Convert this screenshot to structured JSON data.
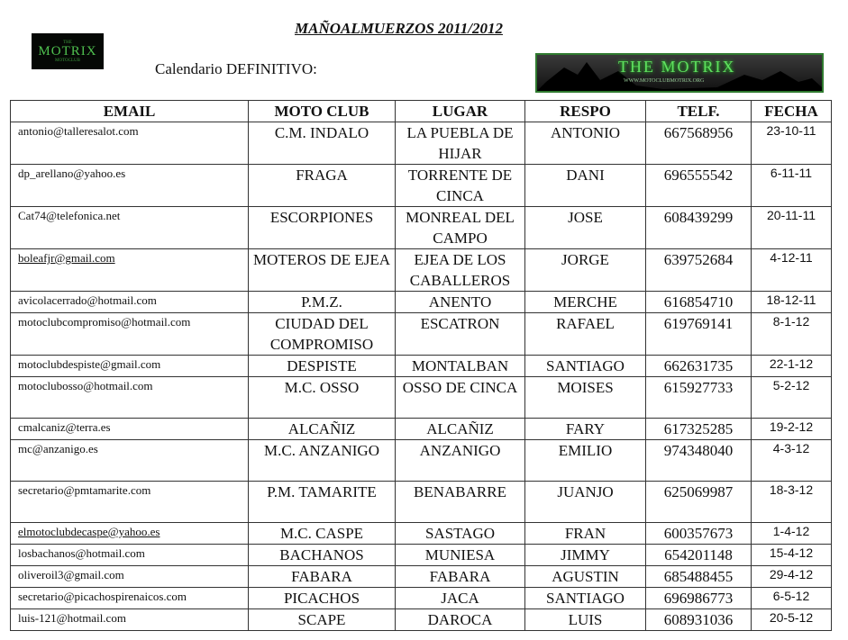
{
  "title": "MAÑOALMUERZOS 2011/2012",
  "subtitle": "Calendario DEFINITIVO:",
  "logo_left": {
    "top": "THE",
    "main": "MOTRIX",
    "bottom": "MOTOCLUB"
  },
  "logo_right": {
    "main": "THE MOTRIX",
    "url": "WWW.MOTOCLUBMOTRIX.ORG"
  },
  "headers": [
    "EMAIL",
    "MOTO CLUB",
    "LUGAR",
    "RESPO",
    "TELF.",
    "FECHA"
  ],
  "rows": [
    {
      "email": "antonio@talleresalot.com",
      "club": "C.M. INDALO",
      "lugar": "LA PUEBLA DE HIJAR",
      "respo": "ANTONIO",
      "telf": "667568956",
      "fecha": "23-10-11"
    },
    {
      "email": "dp_arellano@yahoo.es",
      "club": "FRAGA",
      "lugar": "TORRENTE DE CINCA",
      "respo": "DANI",
      "telf": "696555542",
      "fecha": "6-11-11"
    },
    {
      "email": "Cat74@telefonica.net",
      "club": "ESCORPIONES",
      "lugar": "MONREAL DEL CAMPO",
      "respo": "JOSE",
      "telf": "608439299",
      "fecha": "20-11-11"
    },
    {
      "email": "boleafjr@gmail.com",
      "club": "MOTEROS DE EJEA",
      "lugar": "EJEA DE LOS CABALLEROS",
      "respo": "JORGE",
      "telf": "639752684",
      "fecha": "4-12-11"
    },
    {
      "email": "avicolacerrado@hotmail.com",
      "club": "P.M.Z.",
      "lugar": "ANENTO",
      "respo": "MERCHE",
      "telf": "616854710",
      "fecha": "18-12-11"
    },
    {
      "email": "motoclubcompromiso@hotmail.com",
      "club": "CIUDAD DEL COMPROMISO",
      "lugar": "ESCATRON",
      "respo": "RAFAEL",
      "telf": "619769141",
      "fecha": "8-1-12"
    },
    {
      "email": "motoclubdespiste@gmail.com",
      "club": "DESPISTE",
      "lugar": "MONTALBAN",
      "respo": "SANTIAGO",
      "telf": "662631735",
      "fecha": "22-1-12"
    },
    {
      "email": "motoclubosso@hotmail.com",
      "club": "M.C. OSSO",
      "lugar": "OSSO DE CINCA",
      "respo": "MOISES",
      "telf": "615927733",
      "fecha": "5-2-12"
    },
    {
      "email": "cmalcaniz@terra.es",
      "club": "ALCAÑIZ",
      "lugar": "ALCAÑIZ",
      "respo": "FARY",
      "telf": "617325285",
      "fecha": "19-2-12"
    },
    {
      "email": "mc@anzanigo.es",
      "club": "M.C. ANZANIGO",
      "lugar": "ANZANIGO",
      "respo": "EMILIO",
      "telf": "974348040",
      "fecha": "4-3-12"
    },
    {
      "email": "secretario@pmtamarite.com",
      "club": "P.M. TAMARITE",
      "lugar": "BENABARRE",
      "respo": "JUANJO",
      "telf": "625069987",
      "fecha": "18-3-12"
    },
    {
      "email": "elmotoclubdecaspe@yahoo.es",
      "club": "M.C. CASPE",
      "lugar": "SASTAGO",
      "respo": "FRAN",
      "telf": "600357673",
      "fecha": "1-4-12"
    },
    {
      "email": "losbachanos@hotmail.com",
      "club": "BACHANOS",
      "lugar": "MUNIESA",
      "respo": "JIMMY",
      "telf": "654201148",
      "fecha": "15-4-12"
    },
    {
      "email": "oliveroil3@gmail.com",
      "club": "FABARA",
      "lugar": "FABARA",
      "respo": "AGUSTIN",
      "telf": "685488455",
      "fecha": "29-4-12"
    },
    {
      "email": "secretario@picachospirenaicos.com",
      "club": "PICACHOS",
      "lugar": "JACA",
      "respo": "SANTIAGO",
      "telf": "696986773",
      "fecha": "6-5-12"
    },
    {
      "email": "luis-121@hotmail.com",
      "club": "SCAPE",
      "lugar": "DAROCA",
      "respo": "LUIS",
      "telf": "608931036",
      "fecha": "20-5-12"
    }
  ]
}
